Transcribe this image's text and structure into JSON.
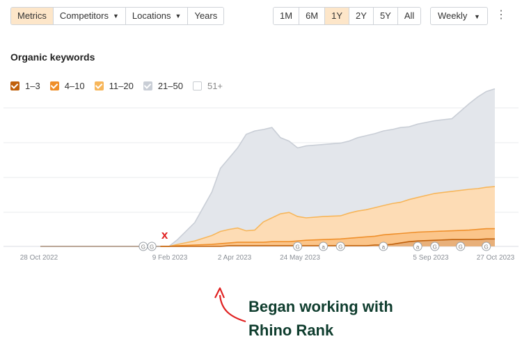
{
  "toolbar": {
    "tabs": [
      {
        "label": "Metrics",
        "active": true
      },
      {
        "label": "Competitors",
        "caret": true
      },
      {
        "label": "Locations",
        "caret": true
      },
      {
        "label": "Years"
      }
    ],
    "ranges": [
      {
        "label": "1M"
      },
      {
        "label": "6M"
      },
      {
        "label": "1Y",
        "active": true
      },
      {
        "label": "2Y"
      },
      {
        "label": "5Y"
      },
      {
        "label": "All"
      }
    ],
    "interval": "Weekly",
    "more_icon": "kebab-menu-icon"
  },
  "title": "Organic keywords",
  "legend": [
    {
      "label": "1–3",
      "color": "#c0600b",
      "checked": true
    },
    {
      "label": "4–10",
      "color": "#ef8f2a",
      "checked": true
    },
    {
      "label": "11–20",
      "color": "#f7b65a",
      "checked": true
    },
    {
      "label": "21–50",
      "color": "#c9ced6",
      "checked": true
    },
    {
      "label": "51+",
      "color": "#ffffff",
      "checked": false
    }
  ],
  "chart_data": {
    "type": "area",
    "title": "Organic keywords",
    "x_ticks": [
      "28 Oct 2022",
      "9 Feb 2023",
      "2 Apr 2023",
      "24 May 2023",
      "5 Sep 2023",
      "27 Oct 2023"
    ],
    "y_ticks_visible": false,
    "grid": true,
    "legend_placement": "top-left",
    "x_weeks": [
      0,
      5,
      10,
      14,
      15,
      16,
      18,
      20,
      21,
      22,
      23,
      24,
      25,
      26,
      27,
      28,
      29,
      30,
      31,
      33,
      35,
      36,
      37,
      38,
      39,
      40,
      41,
      42,
      43,
      44,
      46,
      48,
      50,
      51,
      52,
      53
    ],
    "series": [
      {
        "name": "1–3",
        "values": [
          0,
          0,
          0,
          0,
          0,
          0,
          0,
          0,
          0,
          1,
          1,
          1,
          1,
          1,
          1,
          1,
          1,
          1,
          1,
          1,
          1,
          1,
          1,
          1,
          2,
          2,
          3,
          5,
          7,
          8,
          9,
          10,
          10,
          10,
          11,
          11
        ]
      },
      {
        "name": "4–10",
        "values": [
          0,
          0,
          0,
          0,
          0,
          1,
          2,
          3,
          4,
          5,
          6,
          6,
          6,
          6,
          7,
          7,
          7,
          8,
          9,
          10,
          11,
          12,
          13,
          14,
          15,
          17,
          18,
          19,
          20,
          21,
          22,
          23,
          24,
          25,
          26,
          26
        ]
      },
      {
        "name": "11–20",
        "values": [
          0,
          0,
          0,
          0,
          0,
          3,
          8,
          16,
          22,
          25,
          27,
          23,
          24,
          36,
          42,
          48,
          50,
          44,
          42,
          44,
          45,
          49,
          52,
          54,
          57,
          60,
          63,
          65,
          69,
          72,
          78,
          81,
          84,
          85,
          87,
          88
        ]
      },
      {
        "name": "21–50",
        "values": [
          0,
          0,
          0,
          0,
          0,
          10,
          35,
          80,
          115,
          130,
          145,
          165,
          170,
          172,
          175,
          160,
          155,
          145,
          148,
          150,
          152,
          155,
          160,
          163,
          166,
          170,
          172,
          175,
          176,
          180,
          185,
          188,
          210,
          220,
          228,
          232
        ]
      }
    ],
    "annotation_markers": [
      {
        "week": 12,
        "label": "G"
      },
      {
        "week": 13,
        "label": "G"
      },
      {
        "week": 30,
        "label": "G"
      },
      {
        "week": 33,
        "label": "a"
      },
      {
        "week": 35,
        "label": "G"
      },
      {
        "week": 40,
        "label": "a"
      },
      {
        "week": 44,
        "label": "a"
      },
      {
        "week": 46,
        "label": "G"
      },
      {
        "week": 49,
        "label": "G"
      },
      {
        "week": 52,
        "label": "G"
      }
    ],
    "x_marker_label": "x",
    "note": "Began working with Rhino Rank"
  }
}
